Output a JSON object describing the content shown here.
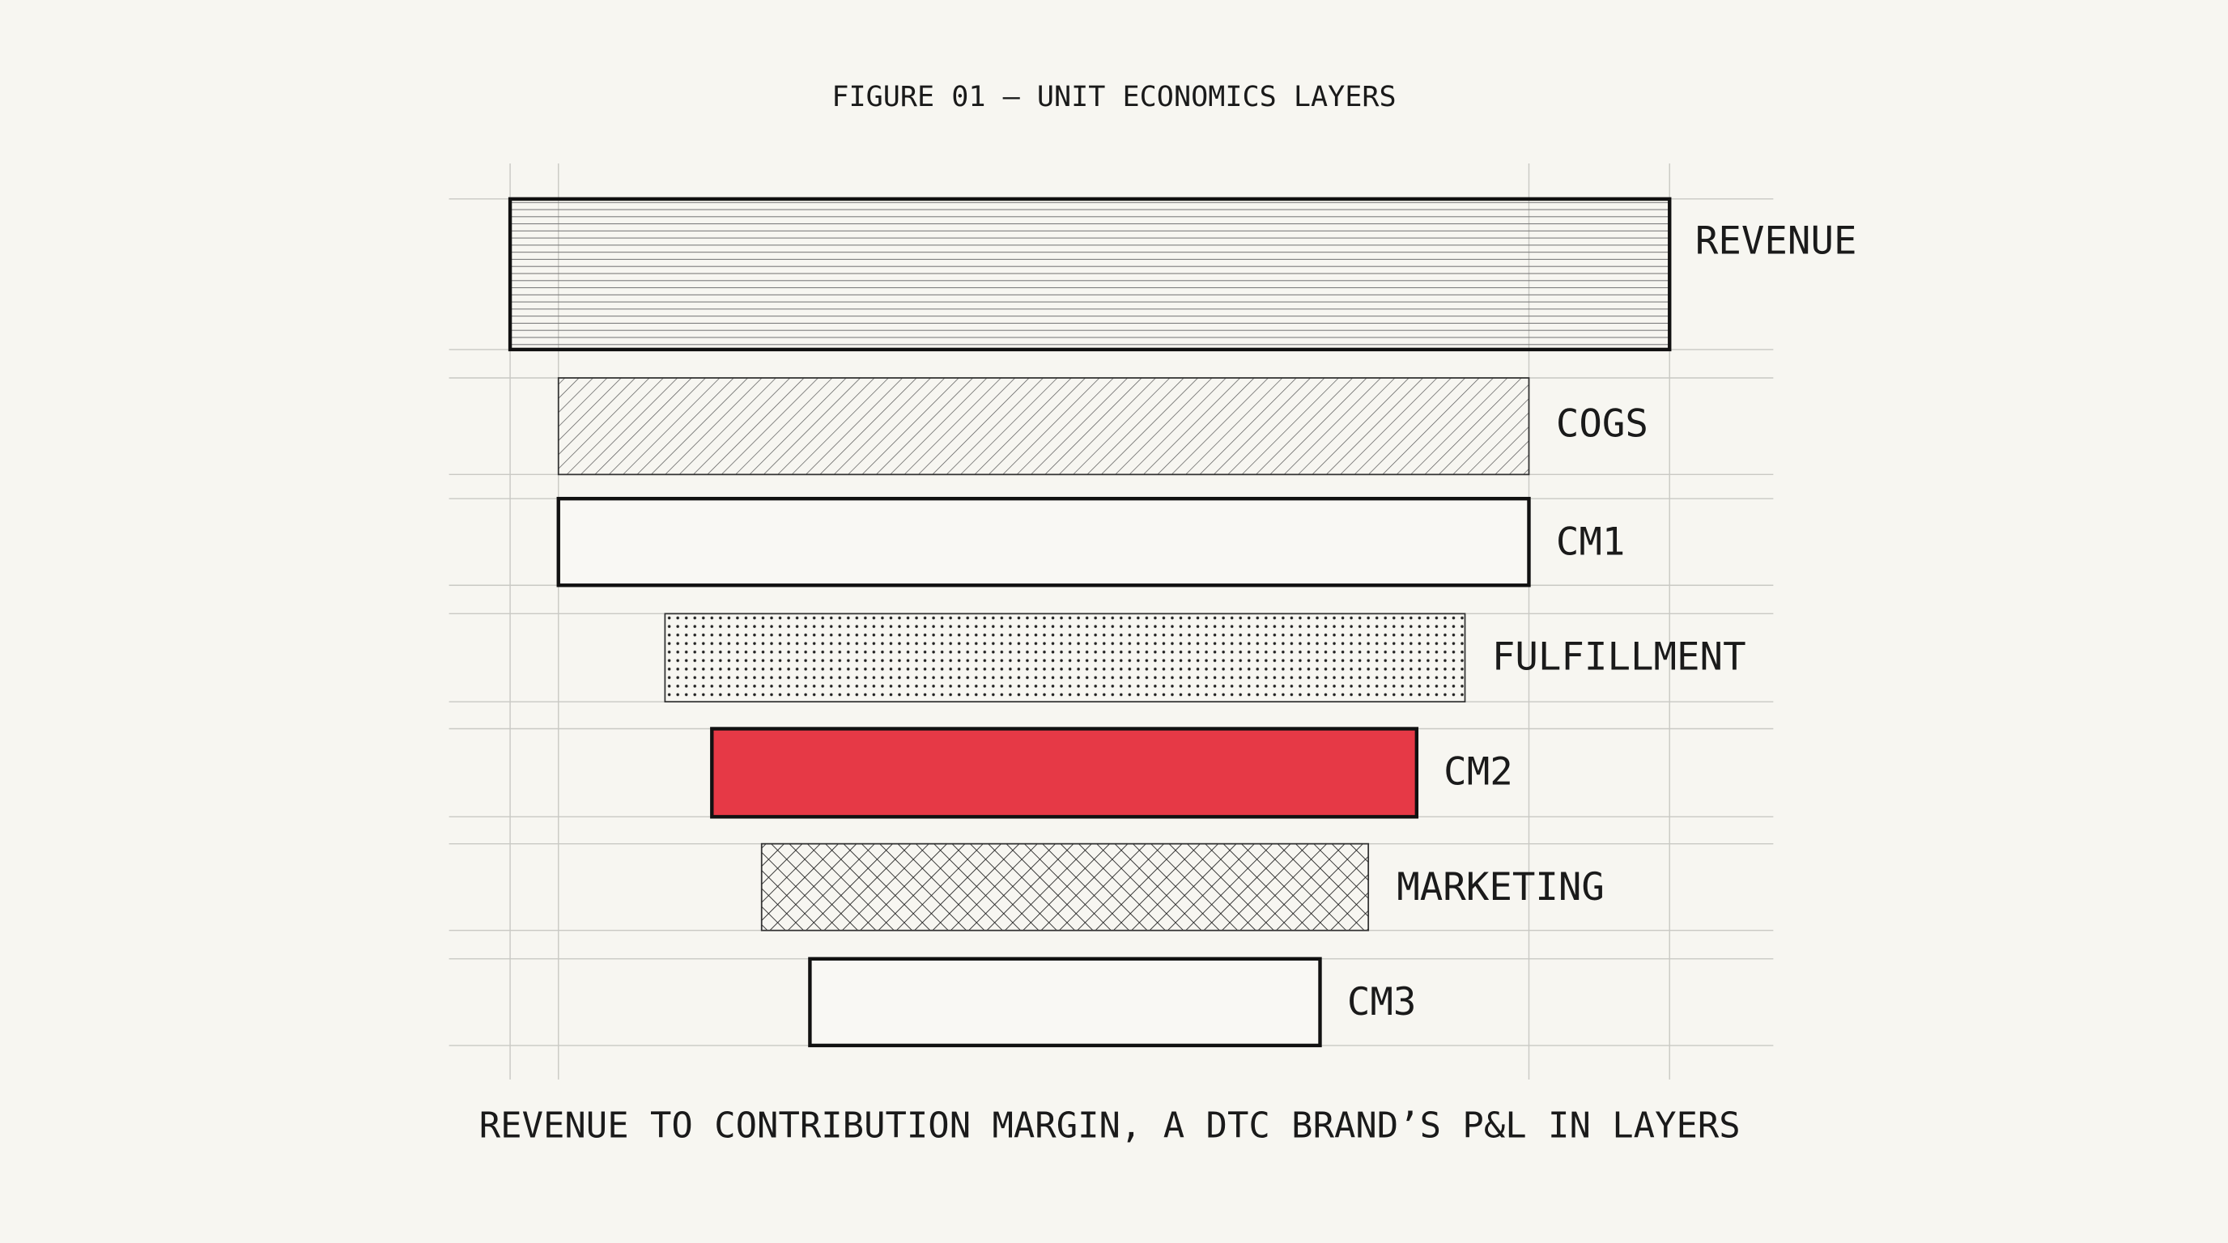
{
  "title": "FIGURE 01 — UNIT ECONOMICS LAYERS",
  "layers": [
    {
      "label": "REVENUE"
    },
    {
      "label": "COGS"
    },
    {
      "label": "CM1"
    },
    {
      "label": "FULFILLMENT"
    },
    {
      "label": "CM2"
    },
    {
      "label": "MARKETING"
    },
    {
      "label": "CM3"
    }
  ],
  "caption": "REVENUE TO CONTRIBUTION MARGIN, A DTC BRAND’S P&L IN LAYERS"
}
